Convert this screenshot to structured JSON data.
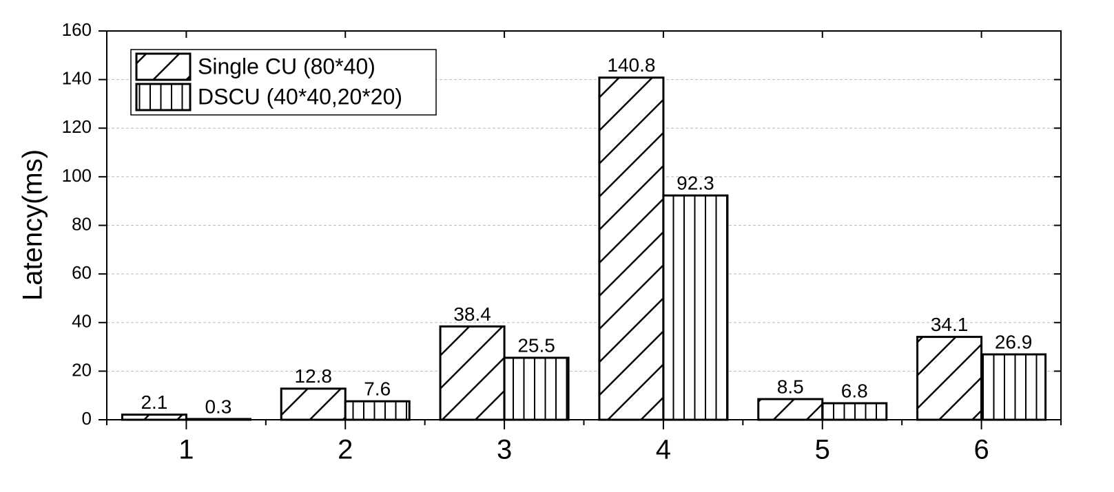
{
  "chart_data": {
    "type": "bar",
    "y_label": "Latency(ms)",
    "categories": [
      "1",
      "2",
      "3",
      "4",
      "5",
      "6"
    ],
    "series": [
      {
        "name": "Single CU (80*40)",
        "color": "#000000",
        "pattern": "diagonal",
        "values": [
          2.1,
          12.8,
          38.4,
          140.8,
          8.5,
          34.1
        ]
      },
      {
        "name": "DSCU (40*40,20*20)",
        "color": "#000000",
        "pattern": "vertical",
        "values": [
          0.3,
          7.6,
          25.5,
          92.3,
          6.8,
          26.9
        ]
      }
    ],
    "ylim": [
      0,
      160
    ],
    "yticks": [
      0,
      20,
      40,
      60,
      80,
      100,
      120,
      140,
      160
    ],
    "grid": true,
    "legend": "upper left"
  }
}
